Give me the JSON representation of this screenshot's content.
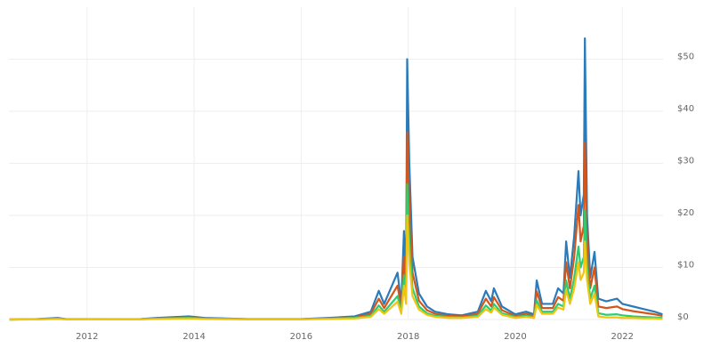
{
  "chart_data": {
    "type": "line",
    "x": [
      2010.55,
      2011.0,
      2011.45,
      2011.6,
      2012.0,
      2013.0,
      2013.3,
      2013.9,
      2014.2,
      2015.0,
      2016.0,
      2016.5,
      2017.0,
      2017.3,
      2017.45,
      2017.55,
      2017.8,
      2017.87,
      2017.92,
      2017.96,
      2017.98,
      2018.02,
      2018.08,
      2018.2,
      2018.35,
      2018.5,
      2018.75,
      2019.0,
      2019.3,
      2019.45,
      2019.55,
      2019.6,
      2019.75,
      2020.0,
      2020.2,
      2020.35,
      2020.4,
      2020.5,
      2020.7,
      2020.8,
      2020.9,
      2020.95,
      2021.02,
      2021.1,
      2021.18,
      2021.22,
      2021.28,
      2021.3,
      2021.34,
      2021.4,
      2021.48,
      2021.55,
      2021.7,
      2021.9,
      2022.0,
      2022.2,
      2022.4,
      2022.6,
      2022.75
    ],
    "series": [
      {
        "color": "#2b7bba",
        "values": [
          0,
          0.05,
          0.3,
          0.1,
          0.05,
          0.1,
          0.3,
          0.6,
          0.3,
          0.1,
          0.1,
          0.3,
          0.6,
          1.5,
          5.5,
          3,
          9,
          3,
          17,
          8,
          50,
          30,
          12,
          5,
          2.5,
          1.5,
          1,
          0.8,
          1.5,
          5.5,
          3.5,
          6,
          2.5,
          1,
          1.5,
          1,
          7.5,
          3,
          3,
          6,
          5,
          15,
          8,
          16,
          28.5,
          20,
          24,
          54,
          20,
          8,
          13,
          4,
          3.5,
          4,
          3,
          2.5,
          2,
          1.5,
          1
        ]
      },
      {
        "color": "#d4561a",
        "values": [
          0,
          0.04,
          0.2,
          0.07,
          0.04,
          0.07,
          0.2,
          0.4,
          0.2,
          0.07,
          0.07,
          0.2,
          0.4,
          1.1,
          4,
          2.2,
          6.5,
          2.2,
          12,
          6,
          36,
          22,
          9,
          3.6,
          1.8,
          1.1,
          0.7,
          0.6,
          1.1,
          4,
          2.5,
          4.3,
          1.8,
          0.7,
          1.1,
          0.7,
          5.4,
          2.2,
          2.2,
          4.3,
          3.6,
          11,
          6,
          12,
          22,
          15,
          18,
          34,
          15,
          6,
          10,
          2.5,
          2.2,
          2.5,
          2,
          1.6,
          1.3,
          1,
          0.7
        ]
      },
      {
        "color": "#2ecc71",
        "values": [
          0,
          0.02,
          0.15,
          0.05,
          0.02,
          0.05,
          0.15,
          0.3,
          0.15,
          0.05,
          0.05,
          0.15,
          0.3,
          0.7,
          2.7,
          1.5,
          4.5,
          1.5,
          8.5,
          4,
          26,
          15,
          6,
          2.5,
          1.2,
          0.7,
          0.5,
          0.4,
          0.7,
          2.7,
          1.7,
          3,
          1.2,
          0.5,
          0.7,
          0.5,
          3.7,
          1.5,
          1.5,
          3,
          2.5,
          7.5,
          4,
          8,
          14,
          10,
          12,
          21,
          10,
          4,
          6.5,
          1.2,
          0.9,
          1,
          0.8,
          0.6,
          0.5,
          0.4,
          0.3
        ]
      },
      {
        "color": "#f1c40f",
        "values": [
          0,
          0.01,
          0.1,
          0.03,
          0.01,
          0.03,
          0.1,
          0.2,
          0.1,
          0.03,
          0.03,
          0.1,
          0.2,
          0.5,
          2,
          1.1,
          3.4,
          1.1,
          6.5,
          3,
          20,
          11,
          4.5,
          1.9,
          0.9,
          0.5,
          0.3,
          0.3,
          0.5,
          2,
          1.3,
          2.3,
          0.9,
          0.3,
          0.5,
          0.3,
          2.8,
          1.1,
          1.1,
          2.3,
          1.9,
          5.7,
          3,
          6,
          11,
          7.6,
          9,
          15,
          7.6,
          3,
          5,
          0.6,
          0.4,
          0.4,
          0.3,
          0.3,
          0.2,
          0.2,
          0.1
        ]
      }
    ],
    "xlim": [
      2010.54,
      2022.76
    ],
    "xticks": [
      2012,
      2014,
      2016,
      2018,
      2020,
      2022
    ],
    "ylim": [
      0,
      60
    ],
    "yticks": [
      {
        "value": 0,
        "label": "$0"
      },
      {
        "value": 10,
        "label": "$10"
      },
      {
        "value": 20,
        "label": "$20"
      },
      {
        "value": 30,
        "label": "$30"
      },
      {
        "value": 40,
        "label": "$40"
      },
      {
        "value": 50,
        "label": "$50"
      }
    ],
    "grid": true
  }
}
